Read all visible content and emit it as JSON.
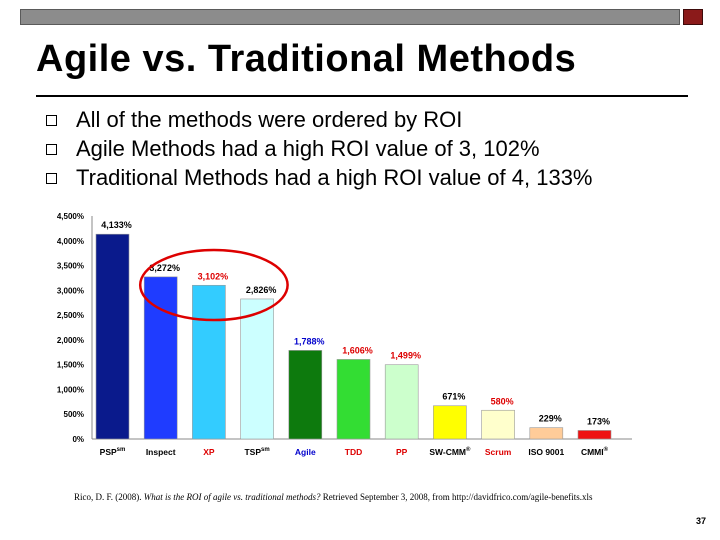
{
  "slide": {
    "title": "Agile vs. Traditional Methods",
    "bullets": [
      "All of the methods were ordered by ROI",
      "Agile Methods had a high ROI value of 3, 102%",
      "Traditional Methods had a high ROI value of 4, 133%"
    ],
    "citation": {
      "prefix": "Rico, D. F. (2008). ",
      "italic": "What is the ROI of agile vs. traditional methods?",
      "suffix": " Retrieved September 3, 2008, from http://davidfrico.com/agile-benefits.xls"
    },
    "page_number": "37"
  },
  "chart_data": {
    "type": "bar",
    "categories": [
      "PSP",
      "Inspect",
      "XP",
      "TSP",
      "Agile",
      "TDD",
      "PP",
      "SW-CMM",
      "Scrum",
      "ISO 9001",
      "CMMI"
    ],
    "category_superscripts": [
      "sm",
      "",
      "",
      "sm",
      "",
      "",
      "",
      "®",
      "",
      "",
      "®"
    ],
    "values": [
      4133,
      3272,
      3102,
      2826,
      1788,
      1606,
      1499,
      671,
      580,
      229,
      173
    ],
    "value_labels": [
      "4,133%",
      "3,272%",
      "3,102%",
      "2,826%",
      "1,788%",
      "1,606%",
      "1,499%",
      "671%",
      "580%",
      "229%",
      "173%"
    ],
    "bar_colors": [
      "#0a1a8c",
      "#1f3cff",
      "#33ccff",
      "#ccffff",
      "#0d7a0d",
      "#33dd33",
      "#ccffcc",
      "#ffff00",
      "#ffffcc",
      "#ffcc99",
      "#ee1111"
    ],
    "category_label_colors": [
      "#000000",
      "#000000",
      "#dd0000",
      "#000000",
      "#0000cc",
      "#dd0000",
      "#dd0000",
      "#000000",
      "#dd0000",
      "#000000",
      "#000000"
    ],
    "value_label_colors": [
      "#000000",
      "#000000",
      "#dd0000",
      "#000000",
      "#0000cc",
      "#dd0000",
      "#dd0000",
      "#000000",
      "#dd0000",
      "#000000",
      "#000000"
    ],
    "y_ticks": [
      "0%",
      "500%",
      "1,000%",
      "1,500%",
      "2,000%",
      "2,500%",
      "3,000%",
      "3,500%",
      "4,000%",
      "4,500%"
    ],
    "ylim": [
      0,
      4500
    ],
    "grid": false,
    "highlight": {
      "shape": "ellipse",
      "color": "#dd0000",
      "around": [
        "Inspect",
        "XP",
        "TSP"
      ]
    }
  }
}
